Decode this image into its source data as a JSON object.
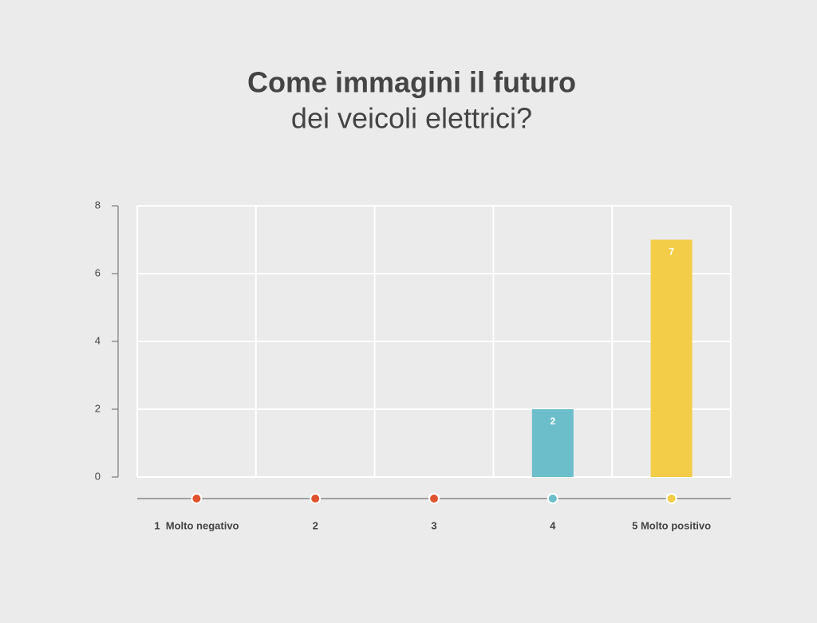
{
  "chart_data": {
    "type": "bar",
    "title": "Come immagini il futuro",
    "subtitle": "dei veicoli elettrici?",
    "categories": [
      "1  Molto negativo",
      "2",
      "3",
      "4",
      "5 Molto positivo"
    ],
    "values": [
      0,
      0,
      0,
      2,
      7
    ],
    "colors": [
      "#e0532f",
      "#e0532f",
      "#e0532f",
      "#6cbfca",
      "#f3cd47"
    ],
    "ylim": [
      0,
      8
    ],
    "yticks": [
      0,
      2,
      4,
      6,
      8
    ],
    "grid": true
  }
}
